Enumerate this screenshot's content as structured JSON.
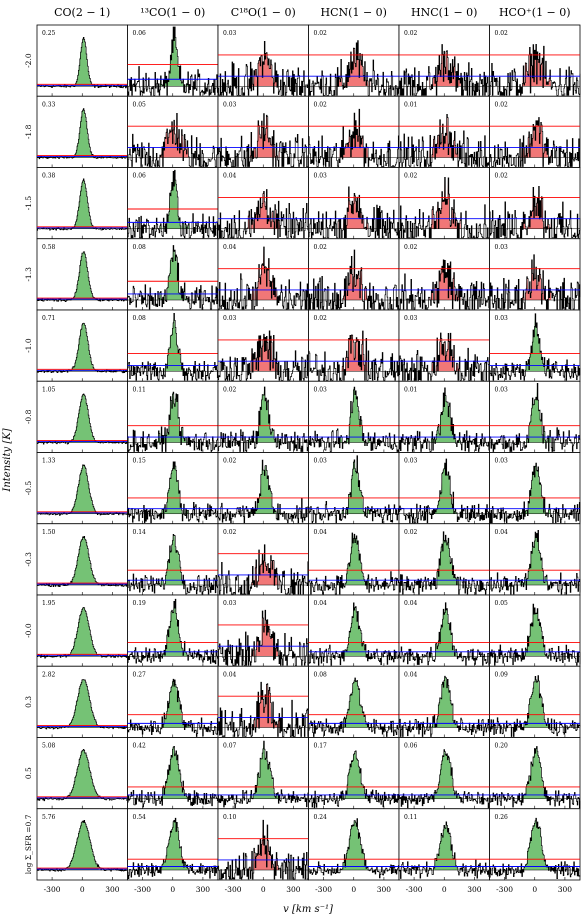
{
  "chart_data": {
    "type": "line",
    "panel_grid": {
      "rows": 12,
      "cols": 6
    },
    "columns": [
      "CO(2 − 1)",
      "¹³CO(1 − 0)",
      "C¹⁸O(1 − 0)",
      "HCN(1 − 0)",
      "HNC(1 − 0)",
      "HCO⁺(1 − 0)"
    ],
    "row_labels": [
      "-2.0",
      "-1.8",
      "-1.5",
      "-1.3",
      "-1.0",
      "-0.8",
      "-0.5",
      "-0.3",
      "-0.0",
      "0.3",
      "0.5",
      "log Σ_SFR =0.7"
    ],
    "peak_labels": [
      [
        "0.25",
        "0.06",
        "0.03",
        "0.02",
        "0.02",
        "0.02"
      ],
      [
        "0.33",
        "0.05",
        "0.03",
        "0.02",
        "0.01",
        "0.02"
      ],
      [
        "0.38",
        "0.06",
        "0.04",
        "0.03",
        "0.02",
        "0.02"
      ],
      [
        "0.58",
        "0.08",
        "0.04",
        "0.02",
        "0.02",
        "0.03"
      ],
      [
        "0.71",
        "0.08",
        "0.03",
        "0.02",
        "0.03",
        "0.03"
      ],
      [
        "1.05",
        "0.11",
        "0.02",
        "0.03",
        "0.01",
        "0.03"
      ],
      [
        "1.33",
        "0.15",
        "0.02",
        "0.03",
        "0.03",
        "0.03"
      ],
      [
        "1.50",
        "0.14",
        "0.02",
        "0.04",
        "0.02",
        "0.04"
      ],
      [
        "1.95",
        "0.19",
        "0.03",
        "0.04",
        "0.04",
        "0.05"
      ],
      [
        "2.82",
        "0.27",
        "0.04",
        "0.08",
        "0.04",
        "0.09"
      ],
      [
        "5.08",
        "0.42",
        "0.07",
        "0.17",
        "0.06",
        "0.20"
      ],
      [
        "5.76",
        "0.54",
        "0.10",
        "0.24",
        "0.11",
        "0.26"
      ]
    ],
    "detections": [
      [
        true,
        true,
        false,
        false,
        false,
        false
      ],
      [
        true,
        false,
        false,
        false,
        false,
        false
      ],
      [
        true,
        true,
        false,
        false,
        false,
        false
      ],
      [
        true,
        true,
        false,
        false,
        false,
        false
      ],
      [
        true,
        true,
        false,
        false,
        false,
        true
      ],
      [
        true,
        true,
        true,
        true,
        true,
        true
      ],
      [
        true,
        true,
        true,
        true,
        true,
        true
      ],
      [
        true,
        true,
        false,
        true,
        true,
        true
      ],
      [
        true,
        true,
        false,
        true,
        true,
        true
      ],
      [
        true,
        true,
        false,
        true,
        true,
        true
      ],
      [
        true,
        true,
        true,
        true,
        true,
        true
      ],
      [
        true,
        true,
        false,
        true,
        true,
        true
      ]
    ],
    "x_ticks": [
      -300,
      0,
      300
    ],
    "xlim": [
      -450,
      450
    ],
    "xlabel": "v [km s⁻¹]",
    "ylabel": "Intensity [K]",
    "colors": {
      "spectrum": "#000000",
      "rms_line": "#0000ff",
      "threshold_line": "#ff0000",
      "detected_fill": "#66bb66",
      "undetected_fill": "#ee5555"
    }
  }
}
